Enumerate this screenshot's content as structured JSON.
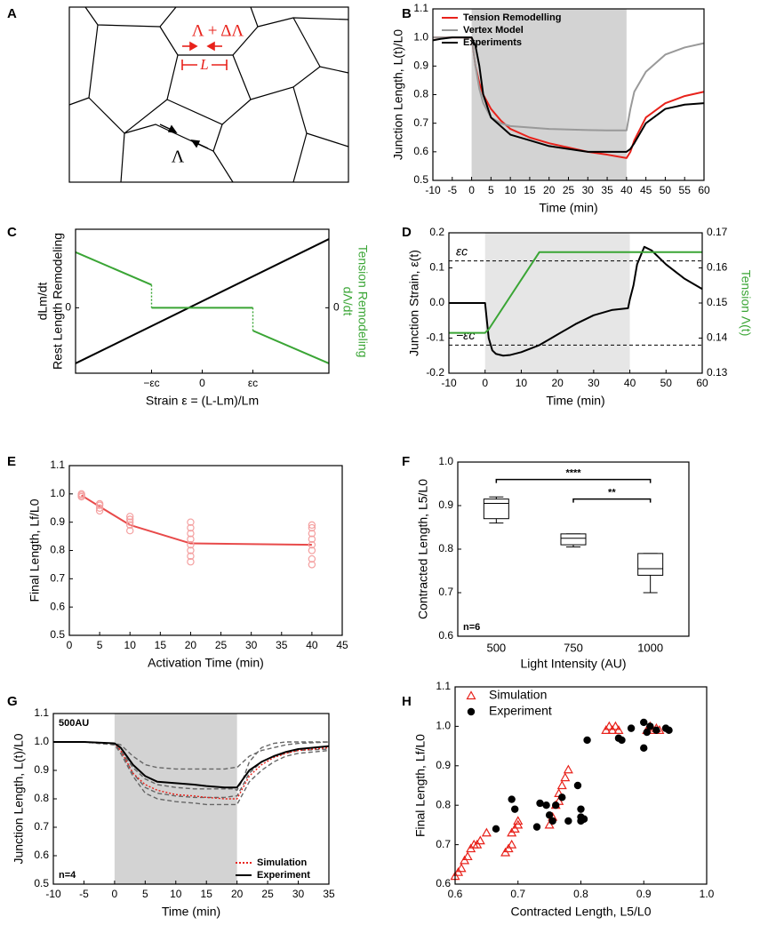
{
  "panel_labels": [
    "A",
    "B",
    "C",
    "D",
    "E",
    "F",
    "G",
    "H"
  ],
  "diagram": {
    "labels": [
      "Λ + ΔΛ",
      "L",
      "Λ"
    ]
  },
  "chart_data": [
    {
      "type": "line",
      "xlabel": "Time (min)",
      "ylabel": "Junction Length, L(t)/L0",
      "x": [
        -10,
        -8,
        -5,
        -2,
        0,
        1,
        2,
        3,
        5,
        7.5,
        10,
        15,
        20,
        25,
        30,
        35,
        40,
        41,
        42,
        45,
        50,
        55,
        60
      ],
      "xlim": [
        -10,
        60
      ],
      "xticks": [
        -10,
        -5,
        0,
        5,
        10,
        15,
        20,
        25,
        30,
        35,
        40,
        45,
        50,
        55,
        60
      ],
      "ylim": [
        0.5,
        1.1
      ],
      "yticks": [
        0.5,
        0.6,
        0.7,
        0.8,
        0.9,
        {
          "value": 1,
          "label": "1.0"
        },
        1.1
      ],
      "shade": {
        "x": [
          0,
          40
        ],
        "color": "#d3d3d3"
      },
      "legend": "upper left",
      "series": [
        {
          "name": "Tension Remodelling",
          "color": "#e8221b",
          "values": [
            1,
            1,
            1,
            1,
            1,
            0.9,
            0.84,
            0.8,
            0.75,
            0.71,
            0.68,
            0.65,
            0.63,
            0.615,
            0.6,
            0.59,
            0.578,
            0.6,
            0.64,
            0.72,
            0.77,
            0.795,
            0.81
          ]
        },
        {
          "name": "Vertex Model",
          "color": "#999999",
          "values": [
            1,
            1,
            1,
            1,
            1,
            0.9,
            0.82,
            0.77,
            0.72,
            0.7,
            0.69,
            0.685,
            0.68,
            0.678,
            0.676,
            0.675,
            0.675,
            0.75,
            0.81,
            0.88,
            0.94,
            0.965,
            0.98
          ]
        },
        {
          "name": "Experiments",
          "color": "#000000",
          "values": [
            0.99,
            0.995,
            1,
            1,
            1,
            0.97,
            0.9,
            0.8,
            0.72,
            0.69,
            0.66,
            0.64,
            0.62,
            0.61,
            0.6,
            0.6,
            0.6,
            0.61,
            0.63,
            0.7,
            0.75,
            0.765,
            0.77
          ]
        }
      ]
    },
    {
      "type": "line",
      "xlabel": "Strain ε = (L-Lm)/Lm",
      "ylabel": [
        "Rest Length Remodeling",
        "dLm/dt"
      ],
      "y2label": [
        "Tension Remodeling",
        "dΛ/dt"
      ],
      "y2label_color": "#3aa535",
      "xlim": [
        -2.5,
        2.5
      ],
      "xticks": [
        {
          "value": -1,
          "label": "−εc"
        },
        0,
        {
          "value": 1,
          "label": "εc"
        }
      ],
      "ylim": [
        -1,
        1.2
      ],
      "yticks": [
        0
      ],
      "y2lim": [
        -1,
        1.2
      ],
      "y2ticks": [
        0
      ],
      "series": [
        {
          "color": "#000000",
          "x": [
            -2.5,
            2.5
          ],
          "values": [
            -0.85,
            1.05
          ]
        },
        {
          "color": "#3aa535",
          "x": [
            -2.5,
            -1,
            -1,
            -1,
            1,
            1,
            1,
            2.5
          ],
          "values": [
            0.85,
            0.35,
            null,
            0,
            0,
            null,
            -0.35,
            -0.85
          ]
        },
        {
          "color": "#3aa535",
          "dash": "dotted",
          "x": [
            -1,
            -1,
            1,
            1,
            1
          ],
          "values": [
            0.35,
            0,
            null,
            0,
            -0.35
          ]
        }
      ]
    },
    {
      "type": "line",
      "xlabel": "Time (min)",
      "ylabel": "Junction Strain, ε(t)",
      "y2label": "Tension Λ(t)",
      "y2label_color": "#3aa535",
      "x": [
        -10,
        -5,
        0,
        0.5,
        1,
        2,
        3,
        5,
        7,
        10,
        15,
        20,
        25,
        30,
        35,
        39.5,
        40,
        41,
        42,
        44,
        46,
        50,
        55,
        60
      ],
      "xlim": [
        -10,
        60
      ],
      "xticks": [
        -10,
        0,
        10,
        20,
        30,
        40,
        50,
        60
      ],
      "ylim": [
        -0.2,
        0.2
      ],
      "yticks": [
        -0.2,
        -0.1,
        {
          "value": 0,
          "label": "0.0"
        },
        0.1,
        0.2
      ],
      "y2lim": [
        0.13,
        0.17
      ],
      "y2ticks": [
        0.13,
        0.14,
        0.15,
        0.16,
        0.17
      ],
      "shade": {
        "x": [
          0,
          40
        ],
        "color": "#e6e6e6"
      },
      "hlines": [
        {
          "value": 0.12,
          "label": "εc"
        },
        {
          "value": -0.12,
          "label": "−εc"
        }
      ],
      "series": [
        {
          "color": "#000000",
          "values": [
            0,
            0,
            0,
            -0.05,
            -0.1,
            -0.135,
            -0.145,
            -0.15,
            -0.148,
            -0.14,
            -0.12,
            -0.09,
            -0.06,
            -0.035,
            -0.02,
            -0.015,
            0.01,
            0.05,
            0.11,
            0.16,
            0.15,
            0.11,
            0.07,
            0.04
          ]
        },
        {
          "color": "#3aa535",
          "axis": "y2",
          "x": [
            -10,
            0,
            1,
            15,
            60
          ],
          "values": [
            0.1415,
            0.1415,
            0.1425,
            0.1645,
            0.1645
          ]
        }
      ]
    },
    {
      "type": "line",
      "xlabel": "Activation Time (min)",
      "ylabel": "Final Length, Lf/L0",
      "xlim": [
        0,
        45
      ],
      "xticks": [
        0,
        5,
        10,
        15,
        20,
        25,
        30,
        35,
        40,
        45
      ],
      "ylim": [
        0.5,
        1.1
      ],
      "yticks": [
        0.5,
        0.6,
        0.7,
        0.8,
        0.9,
        {
          "value": 1,
          "label": "1.0"
        },
        1.1
      ],
      "series": [
        {
          "color": "#e84a4a",
          "x": [
            2,
            5,
            10,
            20,
            40
          ],
          "values": [
            0.995,
            0.955,
            0.89,
            0.825,
            0.82
          ]
        },
        {
          "color": "#f4a0a0",
          "line": false,
          "marker": "circle",
          "marker_fill": "none",
          "x": [
            2,
            2,
            2,
            5,
            5,
            5,
            5,
            10,
            10,
            10,
            10,
            10,
            20,
            20,
            20,
            20,
            20,
            20,
            20,
            20,
            40,
            40,
            40,
            40,
            40,
            40,
            40,
            40
          ],
          "values": [
            0.99,
            0.995,
            1,
            0.94,
            0.95,
            0.96,
            0.965,
            0.87,
            0.89,
            0.9,
            0.91,
            0.92,
            0.76,
            0.78,
            0.8,
            0.82,
            0.84,
            0.86,
            0.88,
            0.9,
            0.75,
            0.77,
            0.8,
            0.82,
            0.84,
            0.86,
            0.88,
            0.89
          ]
        }
      ]
    },
    {
      "type": "box",
      "xlabel": "Light Intensity (AU)",
      "ylabel": "Contracted Length, L5/L0",
      "categories": [
        "500",
        "750",
        "1000"
      ],
      "ylim": [
        0.6,
        1.0
      ],
      "yticks": [
        0.6,
        0.7,
        0.8,
        0.9,
        {
          "value": 1,
          "label": "1.0"
        }
      ],
      "boxes": [
        {
          "min": 0.86,
          "q1": 0.87,
          "median": 0.905,
          "q3": 0.915,
          "max": 0.92
        },
        {
          "min": 0.805,
          "q1": 0.81,
          "median": 0.825,
          "q3": 0.835,
          "max": 0.835
        },
        {
          "min": 0.7,
          "q1": 0.74,
          "median": 0.755,
          "q3": 0.79,
          "max": 0.79
        }
      ],
      "brackets": [
        {
          "from": "500",
          "to": "1000",
          "y": 0.96,
          "label": "****"
        },
        {
          "from": "750",
          "to": "1000",
          "y": 0.915,
          "label": "**"
        }
      ],
      "annotations": [
        {
          "text": "n=6",
          "corner": "lower left"
        }
      ]
    },
    {
      "type": "line",
      "xlabel": "Time (min)",
      "ylabel": "Junction Length, L(t)/L0",
      "x": [
        -10,
        -5,
        0,
        1,
        2,
        3,
        5,
        7,
        10,
        13,
        15,
        18,
        19.5,
        20,
        21,
        22,
        24,
        26,
        28,
        30,
        35
      ],
      "xlim": [
        -10,
        35
      ],
      "xticks": [
        -10,
        -5,
        0,
        5,
        10,
        15,
        20,
        25,
        30,
        35
      ],
      "ylim": [
        0.5,
        1.1
      ],
      "yticks": [
        0.5,
        0.6,
        0.7,
        0.8,
        0.9,
        {
          "value": 1,
          "label": "1.0"
        },
        1.1
      ],
      "shade": {
        "x": [
          0,
          20
        ],
        "color": "#d3d3d3"
      },
      "legend": "lower right",
      "annotations": [
        {
          "text": "500AU",
          "corner": "upper left"
        },
        {
          "text": "n=4",
          "corner": "lower left"
        }
      ],
      "series": [
        {
          "color": "#666666",
          "dash": "dashed",
          "values": [
            1,
            1,
            0.995,
            0.99,
            0.97,
            0.95,
            0.92,
            0.91,
            0.905,
            0.905,
            0.905,
            0.905,
            0.91,
            0.91,
            0.93,
            0.95,
            0.97,
            0.98,
            0.99,
            0.995,
            1
          ]
        },
        {
          "color": "#666666",
          "dash": "dashed",
          "values": [
            1,
            1,
            0.99,
            0.97,
            0.94,
            0.91,
            0.87,
            0.85,
            0.84,
            0.835,
            0.835,
            0.835,
            0.835,
            0.83,
            0.87,
            0.93,
            0.98,
            0.995,
            1,
            1,
            1
          ]
        },
        {
          "color": "#666666",
          "dash": "dashed",
          "values": [
            1,
            1,
            0.99,
            0.97,
            0.93,
            0.89,
            0.84,
            0.82,
            0.81,
            0.805,
            0.805,
            0.805,
            0.81,
            0.81,
            0.85,
            0.89,
            0.93,
            0.95,
            0.96,
            0.97,
            0.975
          ]
        },
        {
          "color": "#666666",
          "dash": "dashed",
          "values": [
            1,
            1,
            0.99,
            0.96,
            0.92,
            0.88,
            0.82,
            0.8,
            0.79,
            0.785,
            0.78,
            0.78,
            0.78,
            0.78,
            0.82,
            0.86,
            0.9,
            0.93,
            0.95,
            0.96,
            0.97
          ]
        },
        {
          "name": "Simulation",
          "color": "#e8221b",
          "dash": "dotted",
          "values": [
            1,
            1,
            0.995,
            0.97,
            0.93,
            0.89,
            0.85,
            0.83,
            0.815,
            0.81,
            0.805,
            0.8,
            0.8,
            0.8,
            0.84,
            0.88,
            0.92,
            0.945,
            0.96,
            0.97,
            0.98
          ]
        },
        {
          "name": "Experiment",
          "color": "#000000",
          "values": [
            1,
            1,
            0.995,
            0.98,
            0.95,
            0.92,
            0.88,
            0.86,
            0.855,
            0.85,
            0.845,
            0.84,
            0.84,
            0.84,
            0.87,
            0.9,
            0.93,
            0.95,
            0.965,
            0.975,
            0.985
          ]
        }
      ]
    },
    {
      "type": "scatter",
      "xlabel": "Contracted Length, L5/L0",
      "ylabel": "Final Length, Lf/L0",
      "xlim": [
        0.6,
        1.0
      ],
      "xticks": [
        0.6,
        0.7,
        0.8,
        0.9,
        {
          "value": 1,
          "label": "1.0"
        }
      ],
      "ylim": [
        0.6,
        1.1
      ],
      "yticks": [
        0.6,
        0.7,
        0.8,
        0.9,
        {
          "value": 1,
          "label": "1.0"
        },
        1.1
      ],
      "legend": "upper left",
      "series": [
        {
          "name": "Simulation",
          "color": "#e8221b",
          "marker": "triangle",
          "marker_fill": "none",
          "line": false,
          "x": [
            0.6,
            0.605,
            0.61,
            0.615,
            0.62,
            0.625,
            0.63,
            0.635,
            0.64,
            0.65,
            0.68,
            0.685,
            0.69,
            0.69,
            0.695,
            0.7,
            0.7,
            0.75,
            0.755,
            0.76,
            0.765,
            0.77,
            0.775,
            0.78,
            0.765,
            0.84,
            0.845,
            0.85,
            0.855,
            0.86,
            0.905,
            0.91,
            0.915,
            0.92,
            0.925
          ],
          "values": [
            0.62,
            0.63,
            0.64,
            0.66,
            0.67,
            0.69,
            0.7,
            0.7,
            0.71,
            0.73,
            0.68,
            0.69,
            0.7,
            0.73,
            0.74,
            0.75,
            0.76,
            0.75,
            0.77,
            0.8,
            0.83,
            0.85,
            0.87,
            0.89,
            0.81,
            0.99,
            1,
            0.99,
            1,
            0.99,
            0.99,
            1,
            0.99,
            0.995,
            0.99
          ]
        },
        {
          "name": "Experiment",
          "color": "#000000",
          "marker": "circle",
          "line": false,
          "x": [
            0.665,
            0.69,
            0.695,
            0.73,
            0.735,
            0.745,
            0.75,
            0.755,
            0.76,
            0.77,
            0.78,
            0.795,
            0.8,
            0.8,
            0.805,
            0.81,
            0.8,
            0.86,
            0.865,
            0.88,
            0.9,
            0.9,
            0.905,
            0.91,
            0.92,
            0.935,
            0.94
          ],
          "values": [
            0.74,
            0.815,
            0.79,
            0.745,
            0.805,
            0.8,
            0.775,
            0.76,
            0.8,
            0.82,
            0.76,
            0.85,
            0.79,
            0.77,
            0.765,
            0.965,
            0.76,
            0.97,
            0.965,
            0.995,
            1.01,
            0.945,
            0.985,
            1,
            0.99,
            0.995,
            0.99
          ]
        }
      ]
    }
  ]
}
